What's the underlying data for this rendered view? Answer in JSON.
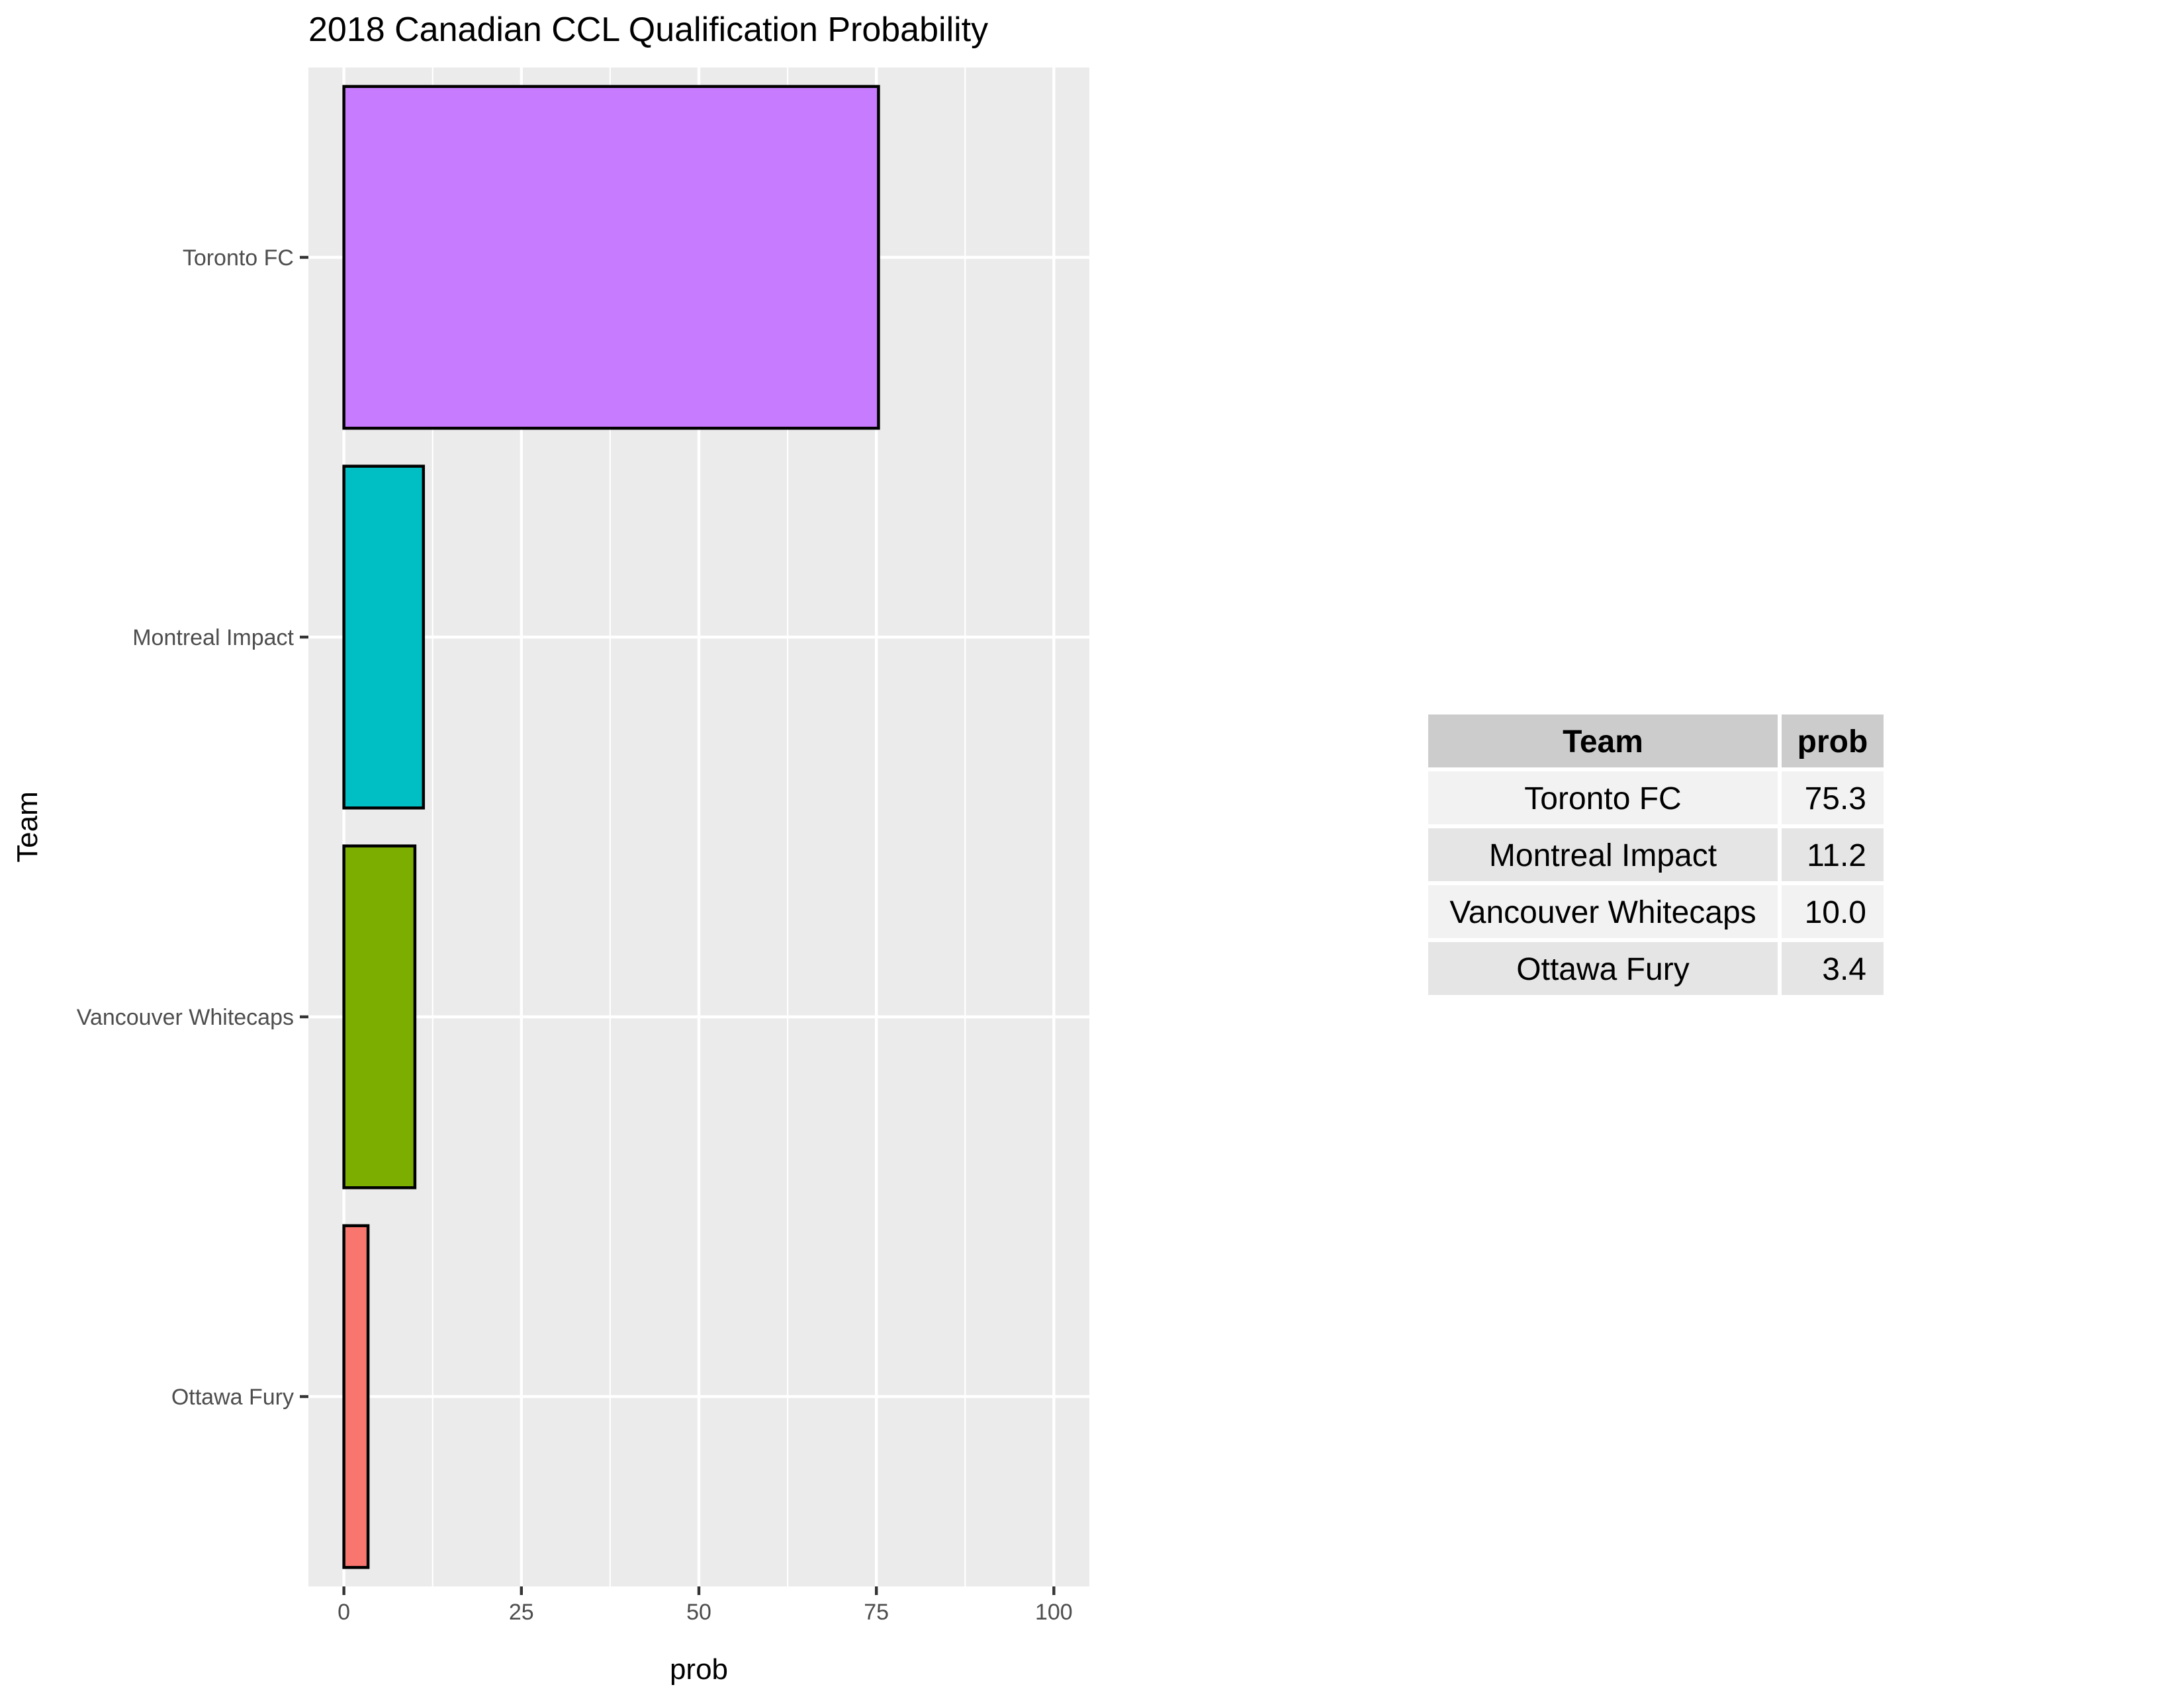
{
  "chart_data": {
    "type": "bar",
    "orientation": "horizontal",
    "title": "2018 Canadian CCL Qualification Probability",
    "xlabel": "prob",
    "ylabel": "Team",
    "xlim": [
      -5,
      105
    ],
    "xticks": [
      0,
      25,
      50,
      75,
      100
    ],
    "grid": true,
    "legend": "none",
    "categories": [
      "Toronto FC",
      "Montreal Impact",
      "Vancouver Whitecaps",
      "Ottawa Fury"
    ],
    "values": [
      75.3,
      11.2,
      10.0,
      3.4
    ],
    "colors": [
      "#C77CFF",
      "#00BFC4",
      "#7CAE00",
      "#F8766D"
    ],
    "bar_outline_color": "#000000",
    "panel_color": "#EBEBEB",
    "gridline_color": "#FFFFFF"
  },
  "table": {
    "headers": [
      "Team",
      "prob"
    ],
    "rows": [
      [
        "Toronto FC",
        "75.3"
      ],
      [
        "Montreal Impact",
        "11.2"
      ],
      [
        "Vancouver Whitecaps",
        "10.0"
      ],
      [
        "Ottawa Fury",
        "3.4"
      ]
    ],
    "header_color": "#CCCCCC",
    "row_colors": [
      "#F2F2F2",
      "#E5E5E5"
    ]
  }
}
